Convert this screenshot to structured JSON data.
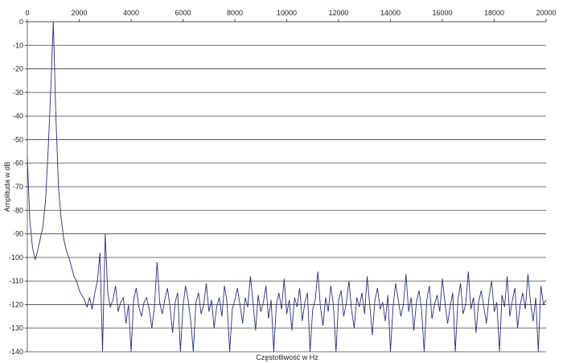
{
  "chart_data": {
    "type": "line",
    "title": "",
    "xlabel": "Częstotliwość w Hz",
    "ylabel": "Amplituda w dB",
    "xlim": [
      0,
      20000
    ],
    "ylim": [
      -140,
      0
    ],
    "x_ticks": [
      0,
      2000,
      4000,
      6000,
      8000,
      10000,
      12000,
      14000,
      16000,
      18000,
      20000
    ],
    "y_ticks": [
      0,
      -10,
      -20,
      -30,
      -40,
      -50,
      -60,
      -70,
      -80,
      -90,
      -100,
      -110,
      -120,
      -130,
      -140
    ],
    "x_axis_position": "top",
    "grid": "horizontal",
    "line_color": "#2b2f7a",
    "x_step": 100,
    "series": [
      {
        "values": [
          -58,
          -85,
          -96,
          -101,
          -97,
          -92,
          -87,
          -76,
          -55,
          -30,
          0,
          -40,
          -70,
          -83,
          -92,
          -97,
          -100,
          -104,
          -108,
          -110,
          -114,
          -116,
          -118,
          -121,
          -117,
          -122,
          -115,
          -110,
          -98,
          -140,
          -90,
          -115,
          -121,
          -118,
          -112,
          -123,
          -119,
          -117,
          -128,
          -120,
          -140,
          -118,
          -113,
          -121,
          -125,
          -119,
          -117,
          -122,
          -130,
          -121,
          -102,
          -119,
          -124,
          -118,
          -113,
          -121,
          -132,
          -119,
          -115,
          -140,
          -121,
          -112,
          -118,
          -127,
          -140,
          -119,
          -115,
          -124,
          -120,
          -111,
          -123,
          -118,
          -130,
          -121,
          -117,
          -125,
          -112,
          -119,
          -140,
          -122,
          -118,
          -113,
          -120,
          -128,
          -117,
          -121,
          -108,
          -119,
          -131,
          -116,
          -123,
          -119,
          -112,
          -126,
          -118,
          -140,
          -120,
          -115,
          -122,
          -109,
          -124,
          -118,
          -131,
          -117,
          -121,
          -113,
          -127,
          -119,
          -115,
          -140,
          -122,
          -118,
          -106,
          -121,
          -129,
          -117,
          -123,
          -112,
          -120,
          -140,
          -118,
          -114,
          -125,
          -119,
          -110,
          -122,
          -130,
          -117,
          -121,
          -115,
          -124,
          -108,
          -120,
          -133,
          -118,
          -113,
          -122,
          -119,
          -127,
          -116,
          -140,
          -121,
          -111,
          -118,
          -125,
          -120,
          -107,
          -123,
          -117,
          -131,
          -119,
          -114,
          -122,
          -140,
          -118,
          -112,
          -126,
          -120,
          -116,
          -123,
          -109,
          -119,
          -128,
          -121,
          -115,
          -140,
          -118,
          -111,
          -124,
          -120,
          -106,
          -122,
          -117,
          -132,
          -119,
          -114,
          -121,
          -128,
          -117,
          -110,
          -123,
          -119,
          -140,
          -116,
          -121,
          -108,
          -125,
          -118,
          -113,
          -130,
          -120,
          -115,
          -122,
          -107,
          -119,
          -127,
          -117,
          -140,
          -112,
          -120,
          -118
        ]
      }
    ]
  }
}
